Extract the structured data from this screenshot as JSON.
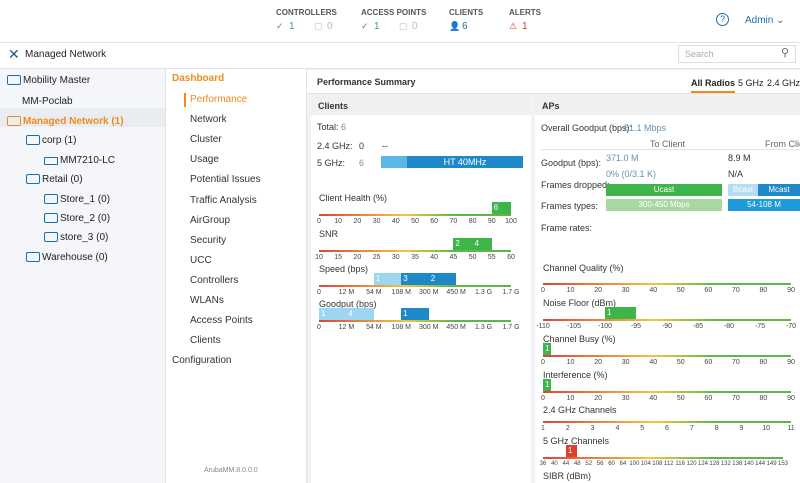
{
  "header": {
    "stats": [
      {
        "label": "CONTROLLERS",
        "values": [
          "1",
          "0"
        ]
      },
      {
        "label": "ACCESS POINTS",
        "values": [
          "1",
          "0"
        ]
      },
      {
        "label": "CLIENTS",
        "values": [
          "6"
        ]
      },
      {
        "label": "ALERTS",
        "values": [
          "1"
        ]
      }
    ],
    "user": "Admin"
  },
  "toolbar": {
    "title": "Managed Network",
    "search_placeholder": "Search"
  },
  "tree": [
    "Mobility Master",
    "MM-Poclab",
    "Managed Network (1)",
    "corp (1)",
    "MM7210-LC",
    "Retail (0)",
    "Store_1 (0)",
    "Store_2 (0)",
    "store_3 (0)",
    "Warehouse (0)"
  ],
  "menu": {
    "heading": "Dashboard",
    "items": [
      "Performance",
      "Network",
      "Cluster",
      "Usage",
      "Potential Issues",
      "Traffic Analysis",
      "AirGroup",
      "Security",
      "UCC",
      "Controllers",
      "WLANs",
      "Access Points",
      "Clients"
    ],
    "footer_item": "Configuration",
    "version": "ArubaMM.8.0.0.0"
  },
  "performance": {
    "title": "Performance Summary",
    "tabs": [
      "All Radios",
      "5 GHz",
      "2.4 GHz"
    ],
    "clients": {
      "title": "Clients",
      "total": {
        "label": "Total:",
        "value": "6"
      },
      "ghz24": {
        "label": "2.4 GHz:",
        "value": "0",
        "mode": "--"
      },
      "ghz5": {
        "label": "5 GHz:",
        "value": "6",
        "mode": "HT 40MHz"
      },
      "histograms": [
        {
          "label": "Client Health (%)",
          "ticks": [
            "0",
            "10",
            "20",
            "30",
            "40",
            "50",
            "60",
            "70",
            "80",
            "90",
            "100"
          ],
          "bars": [
            "6"
          ]
        },
        {
          "label": "SNR",
          "ticks": [
            "10",
            "15",
            "20",
            "25",
            "30",
            "35",
            "40",
            "45",
            "50",
            "55",
            "60"
          ],
          "bars": [
            "2",
            "4"
          ]
        },
        {
          "label": "Speed (bps)",
          "ticks": [
            "0",
            "12 M",
            "54 M",
            "108 M",
            "300 M",
            "450 M",
            "1.3 G",
            "1.7 G"
          ],
          "bars": [
            "1",
            "3",
            "2"
          ]
        },
        {
          "label": "Goodput (bps)",
          "ticks": [
            "0",
            "12 M",
            "54 M",
            "108 M",
            "300 M",
            "450 M",
            "1.3 G",
            "1.7 G"
          ],
          "bars": [
            "1",
            "4",
            "1"
          ]
        }
      ]
    },
    "aps": {
      "title": "APs",
      "overall": {
        "label": "Overall Goodput (bps):",
        "value": "51.1 Mbps"
      },
      "columns": [
        "To Client",
        "From Clie"
      ],
      "goodput": {
        "label": "Goodput (bps):",
        "to_client": [
          "371.0 M",
          "0% (0/3.1 K)"
        ],
        "from_client": [
          "8.9 M",
          "N/A"
        ]
      },
      "frames_dropped": {
        "label": "Frames dropped:",
        "bars": [
          "Ucast",
          "Bcast",
          "Mcast"
        ]
      },
      "frame_types": {
        "label": "Frames types:",
        "bars": [
          "300-450 Mbps",
          "54-108 M"
        ]
      },
      "frame_rates": {
        "label": "Frame rates:"
      },
      "histograms": [
        {
          "label": "Channel Quality (%)",
          "ticks": [
            "0",
            "10",
            "20",
            "30",
            "40",
            "50",
            "60",
            "70",
            "80",
            "90"
          ]
        },
        {
          "label": "Noise Floor (dBm)",
          "ticks": [
            "-110",
            "-105",
            "-100",
            "-95",
            "-90",
            "-85",
            "-80",
            "-75",
            "-70"
          ],
          "bars": [
            "1"
          ]
        },
        {
          "label": "Channel Busy (%)",
          "ticks": [
            "0",
            "10",
            "20",
            "30",
            "40",
            "50",
            "60",
            "70",
            "80",
            "90"
          ],
          "bars": [
            "1"
          ]
        },
        {
          "label": "Interference (%)",
          "ticks": [
            "0",
            "10",
            "20",
            "30",
            "40",
            "50",
            "60",
            "70",
            "80",
            "90"
          ],
          "bars": [
            "1"
          ]
        },
        {
          "label": "2.4 GHz Channels",
          "ticks": [
            "1",
            "2",
            "3",
            "4",
            "5",
            "6",
            "7",
            "8",
            "9",
            "10",
            "11"
          ]
        },
        {
          "label": "5 GHz Channels",
          "ticks": [
            "36",
            "40",
            "44",
            "48",
            "52",
            "56",
            "60",
            "64",
            "100",
            "104",
            "108",
            "112",
            "116",
            "120",
            "124",
            "128",
            "132",
            "136",
            "140",
            "144",
            "149",
            "153"
          ],
          "bars": [
            "1"
          ]
        },
        {
          "label": "SIBR (dBm)"
        }
      ]
    }
  }
}
